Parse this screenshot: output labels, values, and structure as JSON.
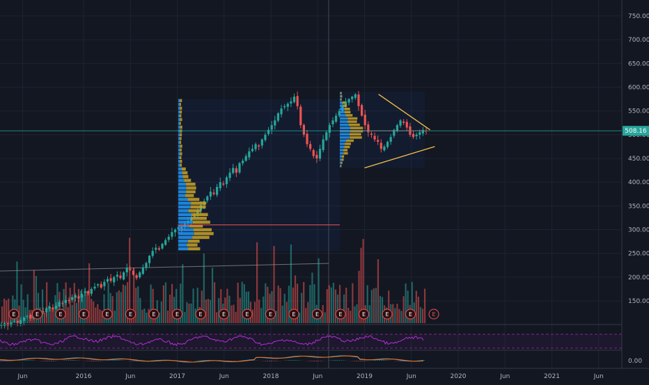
{
  "chart_data": {
    "type": "candlestick",
    "price_axis": {
      "ticks": [
        "750.00",
        "700.00",
        "650.00",
        "600.00",
        "550.00",
        "500.00",
        "450.00",
        "400.00",
        "350.00",
        "300.00",
        "250.00",
        "200.00",
        "150.00"
      ],
      "range": [
        90,
        775
      ]
    },
    "time_axis": {
      "ticks": [
        "Jun",
        "2016",
        "Jun",
        "2017",
        "Jun",
        "2018",
        "Jun",
        "2019",
        "Jun",
        "2020",
        "Jun",
        "2021",
        "Jun"
      ]
    },
    "last_price": "508.16",
    "macd_axis_label": "0.00",
    "earnings_marker": "E",
    "colors": {
      "background": "#131722",
      "up": "#26a69a",
      "down": "#ef5350",
      "grid": "#1e2331",
      "text": "#b2b5be",
      "last_price_line": "#26a69a",
      "triangle": "#f5c342",
      "poc_line": "#ef5350",
      "rsi": "#b32dd9",
      "rsi_band": "#9c27b0",
      "macd": "#2196f3",
      "signal": "#ff6d00",
      "vp_blue": "#2196f3",
      "vp_gold": "#c9a227"
    },
    "closes": [
      100,
      103,
      98,
      105,
      108,
      104,
      110,
      115,
      118,
      113,
      120,
      125,
      130,
      127,
      135,
      138,
      132,
      140,
      148,
      145,
      152,
      150,
      158,
      162,
      155,
      165,
      170,
      166,
      175,
      180,
      185,
      178,
      190,
      196,
      192,
      200,
      205,
      198,
      210,
      220,
      215,
      205,
      198,
      210,
      220,
      230,
      245,
      255,
      262,
      258,
      270,
      278,
      285,
      295,
      300,
      305,
      302,
      312,
      318,
      325,
      330,
      340,
      352,
      360,
      370,
      380,
      375,
      390,
      400,
      395,
      410,
      420,
      430,
      420,
      440,
      445,
      455,
      465,
      470,
      480,
      475,
      490,
      500,
      510,
      520,
      530,
      545,
      555,
      560,
      565,
      570,
      580,
      560,
      520,
      500,
      480,
      470,
      455,
      450,
      470,
      490,
      505,
      520,
      530,
      540,
      550,
      560,
      570,
      575,
      580,
      585,
      560,
      540,
      520,
      505,
      500,
      490,
      485,
      470,
      475,
      485,
      495,
      510,
      520,
      530,
      525,
      515,
      500,
      495,
      500,
      505,
      510,
      508
    ],
    "volume_profiles": [
      {
        "price_range": [
          255,
          575
        ],
        "rows": 40,
        "poc_price": 310
      },
      {
        "price_range": [
          430,
          590
        ],
        "rows": 24,
        "poc_price": 508
      }
    ],
    "triangle": {
      "upper": [
        [
          2019.15,
          585
        ],
        [
          2019.7,
          510
        ]
      ],
      "lower": [
        [
          2019.0,
          430
        ],
        [
          2019.75,
          475
        ]
      ]
    }
  }
}
